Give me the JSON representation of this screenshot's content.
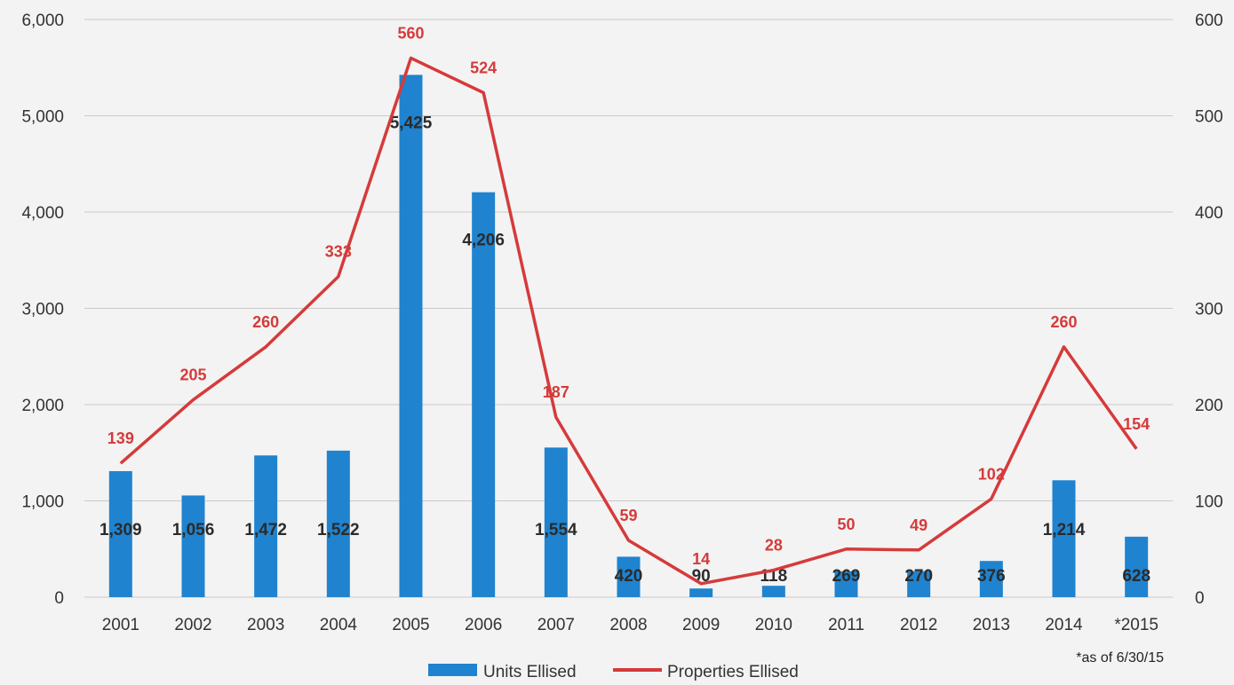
{
  "chart_data": {
    "type": "bar",
    "categories": [
      "2001",
      "2002",
      "2003",
      "2004",
      "2005",
      "2006",
      "2007",
      "2008",
      "2009",
      "2010",
      "2011",
      "2012",
      "2013",
      "2014",
      "*2015"
    ],
    "series": [
      {
        "name": "Units Ellised",
        "type": "bar",
        "axis": "left",
        "color": "#1f83cf",
        "values": [
          1309,
          1056,
          1472,
          1522,
          5425,
          4206,
          1554,
          420,
          90,
          118,
          269,
          270,
          376,
          1214,
          628
        ],
        "labels": [
          "1,309",
          "1,056",
          "1,472",
          "1,522",
          "5,425",
          "4,206",
          "1,554",
          "420",
          "90",
          "118",
          "269",
          "270",
          "376",
          "1,214",
          "628"
        ]
      },
      {
        "name": "Properties Ellised",
        "type": "line",
        "axis": "right",
        "color": "#d63a3a",
        "values": [
          139,
          205,
          260,
          333,
          560,
          524,
          187,
          59,
          14,
          28,
          50,
          49,
          102,
          260,
          154
        ],
        "labels": [
          "139",
          "205",
          "260",
          "333",
          "560",
          "524",
          "187",
          "59",
          "14",
          "28",
          "50",
          "49",
          "102",
          "260",
          "154"
        ]
      }
    ],
    "y_left": {
      "ylim": [
        0,
        6000
      ],
      "ticks": [
        "0",
        "1,000",
        "2,000",
        "3,000",
        "4,000",
        "5,000",
        "6,000"
      ],
      "tick_values": [
        0,
        1000,
        2000,
        3000,
        4000,
        5000,
        6000
      ]
    },
    "y_right": {
      "ylim": [
        0,
        600
      ],
      "ticks": [
        "0",
        "100",
        "200",
        "300",
        "400",
        "500",
        "600"
      ],
      "tick_values": [
        0,
        100,
        200,
        300,
        400,
        500,
        600
      ]
    },
    "title": "",
    "xlabel": "",
    "ylabel": "",
    "grid": true,
    "legend_position": "bottom",
    "annotation": "*as of 6/30/15"
  }
}
